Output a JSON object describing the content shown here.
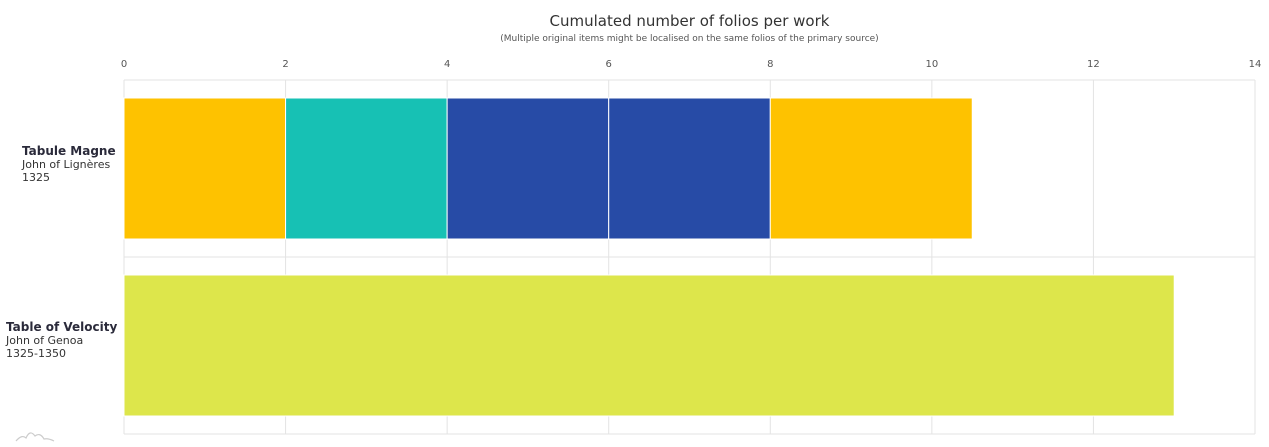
{
  "chart_data": {
    "type": "bar",
    "orientation": "horizontal",
    "stacked": true,
    "title": "Cumulated number of folios per work",
    "subtitle": "(Multiple original items might be localised on the same folios of the primary source)",
    "xlim": [
      0,
      14
    ],
    "x_ticks": [
      "0",
      "2",
      "4",
      "6",
      "8",
      "10",
      "12",
      "14"
    ],
    "categories": [
      {
        "name": "Tabule Magne",
        "author": "John of Lignères",
        "date": "1325"
      },
      {
        "name": "Table of  Velocity",
        "author": "John of Genoa",
        "date": "1325-1350"
      }
    ],
    "segments": [
      {
        "category": 0,
        "value": 2,
        "color": "#fec200"
      },
      {
        "category": 0,
        "value": 2,
        "color": "#17c1b4"
      },
      {
        "category": 0,
        "value": 2,
        "color": "#274ba6"
      },
      {
        "category": 0,
        "value": 2,
        "color": "#274ba6"
      },
      {
        "category": 0,
        "value": 2.5,
        "color": "#fec200"
      },
      {
        "category": 1,
        "value": 13,
        "color": "#dde64b"
      }
    ],
    "grid": true,
    "axis_position": "top"
  }
}
